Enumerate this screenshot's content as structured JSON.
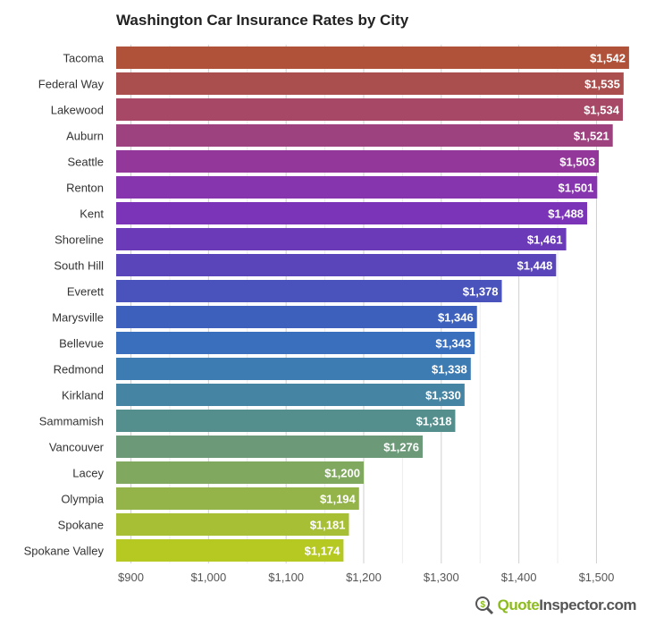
{
  "chart_data": {
    "type": "bar",
    "orientation": "horizontal",
    "title": "Washington Car Insurance Rates by City",
    "xlabel": "",
    "ylabel": "",
    "categories": [
      "Tacoma",
      "Federal Way",
      "Lakewood",
      "Auburn",
      "Seattle",
      "Renton",
      "Kent",
      "Shoreline",
      "South Hill",
      "Everett",
      "Marysville",
      "Bellevue",
      "Redmond",
      "Kirkland",
      "Sammamish",
      "Vancouver",
      "Lacey",
      "Olympia",
      "Spokane",
      "Spokane Valley"
    ],
    "values": [
      1542,
      1535,
      1534,
      1521,
      1503,
      1501,
      1488,
      1461,
      1448,
      1378,
      1346,
      1343,
      1338,
      1330,
      1318,
      1276,
      1200,
      1194,
      1181,
      1174
    ],
    "data_labels": [
      "$1,542",
      "$1,535",
      "$1,534",
      "$1,521",
      "$1,503",
      "$1,501",
      "$1,488",
      "$1,461",
      "$1,448",
      "$1,378",
      "$1,346",
      "$1,343",
      "$1,338",
      "$1,330",
      "$1,318",
      "$1,276",
      "$1,200",
      "$1,194",
      "$1,181",
      "$1,174"
    ],
    "colors": [
      "#b0523a",
      "#ab4f4e",
      "#a64866",
      "#9d427f",
      "#93389a",
      "#8635ae",
      "#7b34b8",
      "#6a3ab9",
      "#5a45bb",
      "#4a52bb",
      "#3e60bd",
      "#3a6fbd",
      "#3d7bb3",
      "#4584a2",
      "#548f8e",
      "#6c9a79",
      "#80a95f",
      "#94b44a",
      "#a6bf34",
      "#b5c922"
    ],
    "xlim": [
      881,
      1549
    ],
    "xticks": [
      900,
      1000,
      1100,
      1200,
      1300,
      1400,
      1500
    ],
    "xtick_labels": [
      "$900",
      "$1,000",
      "$1,100",
      "$1,200",
      "$1,300",
      "$1,400",
      "$1,500"
    ],
    "grid": true
  },
  "logo": {
    "part1": "Quote",
    "part2": "Inspector.com"
  }
}
